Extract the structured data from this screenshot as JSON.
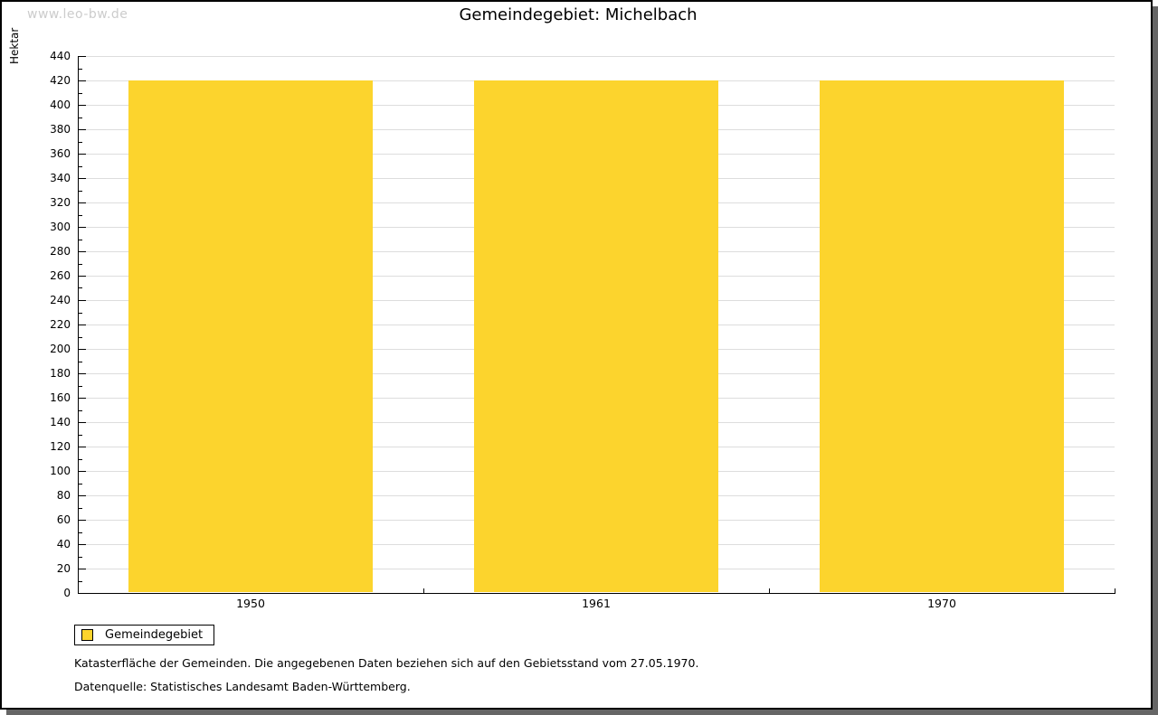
{
  "watermark": "www.leo-bw.de",
  "title": "Gemeindegebiet: Michelbach",
  "chart_data": {
    "type": "bar",
    "title": "Gemeindegebiet: Michelbach",
    "categories": [
      "1950",
      "1961",
      "1970"
    ],
    "series": [
      {
        "name": "Gemeindegebiet",
        "values": [
          420,
          420,
          420
        ]
      }
    ],
    "xlabel": "",
    "ylabel": "Hektar",
    "ylim": [
      0,
      440
    ],
    "ytick_step": 20,
    "minor_tick_step": 10,
    "grid": true,
    "legend_position": "bottom-left",
    "bar_color": "#FCD42D"
  },
  "legend": {
    "items": [
      {
        "label": "Gemeindegebiet",
        "color": "#FCD42D"
      }
    ]
  },
  "footer": {
    "line1": "Katasterfläche der Gemeinden. Die angegebenen Daten beziehen sich auf den Gebietsstand vom 27.05.1970.",
    "line2": "Datenquelle: Statistisches Landesamt Baden-Württemberg."
  },
  "colors": {
    "bar": "#FCD42D",
    "grid": "#DDDDDD",
    "axis": "#000000",
    "watermark": "#CCCCCC",
    "shadow": "#666666",
    "frame_border": "#000000",
    "background": "#FFFFFF"
  }
}
